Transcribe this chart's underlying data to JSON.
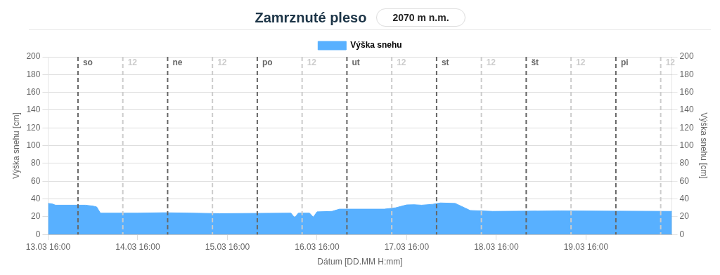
{
  "chart_data": {
    "type": "area",
    "title": "Zamrznuté pleso",
    "subtitle": "2070 m n.m.",
    "xlabel": "Dátum [DD.MM H:mm]",
    "ylabel": "Výška snehu [cm]",
    "y2label": "Výška snehu [cm]",
    "x": [
      "--03-13T16:00",
      "--03-13T17:00",
      "--03-13T18:00",
      "--03-14T02:00",
      "--03-14T04:00",
      "--03-14T05:00",
      "--03-14T06:00",
      "--03-14T16:00",
      "--03-14T23:00",
      "--03-15T14:00",
      "--03-16T09:00",
      "--03-16T10:00",
      "--03-16T11:00",
      "--03-16T14:00",
      "--03-16T15:00",
      "--03-16T16:00",
      "--03-16T20:00",
      "--03-16T22:00",
      "--03-17T10:00",
      "--03-17T13:00",
      "--03-17T16:00",
      "--03-17T18:00",
      "--03-17T20:00",
      "--03-17T23:00",
      "--03-18T01:00",
      "--03-18T05:00",
      "--03-18T07:00",
      "--03-18T09:00",
      "--03-18T15:00",
      "--03-19T09:00",
      "--03-20T15:00"
    ],
    "series": [
      {
        "name": "Výška snehu",
        "color": "#58b0ff",
        "values": [
          35,
          34.5,
          33,
          33,
          32,
          31,
          24,
          24,
          24.5,
          23.5,
          24,
          19,
          24,
          24,
          19.5,
          25.5,
          26,
          28.5,
          28.5,
          30,
          33.3,
          33.5,
          33,
          34,
          35.5,
          35,
          31,
          27,
          26,
          26.5,
          26
        ]
      }
    ],
    "xlim": [
      "--03-13T16:00",
      "--03-20T15:00"
    ],
    "xticks": [
      {
        "value": "--03-13T16:00",
        "label": "13.03 16:00"
      },
      {
        "value": "--03-14T16:00",
        "label": "14.03 16:00"
      },
      {
        "value": "--03-15T16:00",
        "label": "15.03 16:00"
      },
      {
        "value": "--03-16T16:00",
        "label": "16.03 16:00"
      },
      {
        "value": "--03-17T16:00",
        "label": "17.03 16:00"
      },
      {
        "value": "--03-18T16:00",
        "label": "18.03 16:00"
      },
      {
        "value": "--03-19T16:00",
        "label": "19.03 16:00"
      }
    ],
    "ylim": [
      0,
      200
    ],
    "yticks": [
      0,
      20,
      40,
      60,
      80,
      100,
      120,
      140,
      160,
      180,
      200
    ],
    "y2lim": [
      0,
      200
    ],
    "y2ticks": [
      0,
      20,
      40,
      60,
      80,
      100,
      120,
      140,
      160,
      180,
      200
    ],
    "grid": "y",
    "legend": "top",
    "marker": "none",
    "ref_lines": [
      {
        "axis": "x",
        "value": "--03-14T00:00",
        "label": "so",
        "color": "#666666",
        "line_style": "dashed"
      },
      {
        "axis": "x",
        "value": "--03-14T12:00",
        "label": "12",
        "color": "#cccccc",
        "line_style": "dashed"
      },
      {
        "axis": "x",
        "value": "--03-15T00:00",
        "label": "ne",
        "color": "#666666",
        "line_style": "dashed"
      },
      {
        "axis": "x",
        "value": "--03-15T12:00",
        "label": "12",
        "color": "#cccccc",
        "line_style": "dashed"
      },
      {
        "axis": "x",
        "value": "--03-16T00:00",
        "label": "po",
        "color": "#666666",
        "line_style": "dashed"
      },
      {
        "axis": "x",
        "value": "--03-16T12:00",
        "label": "12",
        "color": "#cccccc",
        "line_style": "dashed"
      },
      {
        "axis": "x",
        "value": "--03-17T00:00",
        "label": "ut",
        "color": "#666666",
        "line_style": "dashed"
      },
      {
        "axis": "x",
        "value": "--03-17T12:00",
        "label": "12",
        "color": "#cccccc",
        "line_style": "dashed"
      },
      {
        "axis": "x",
        "value": "--03-18T00:00",
        "label": "st",
        "color": "#666666",
        "line_style": "dashed"
      },
      {
        "axis": "x",
        "value": "--03-18T12:00",
        "label": "12",
        "color": "#cccccc",
        "line_style": "dashed"
      },
      {
        "axis": "x",
        "value": "--03-19T00:00",
        "label": "št",
        "color": "#666666",
        "line_style": "dashed"
      },
      {
        "axis": "x",
        "value": "--03-19T12:00",
        "label": "12",
        "color": "#cccccc",
        "line_style": "dashed"
      },
      {
        "axis": "x",
        "value": "--03-20T00:00",
        "label": "pi",
        "color": "#666666",
        "line_style": "dashed"
      },
      {
        "axis": "x",
        "value": "--03-20T12:00",
        "label": "12",
        "color": "#cccccc",
        "line_style": "dashed"
      }
    ]
  }
}
